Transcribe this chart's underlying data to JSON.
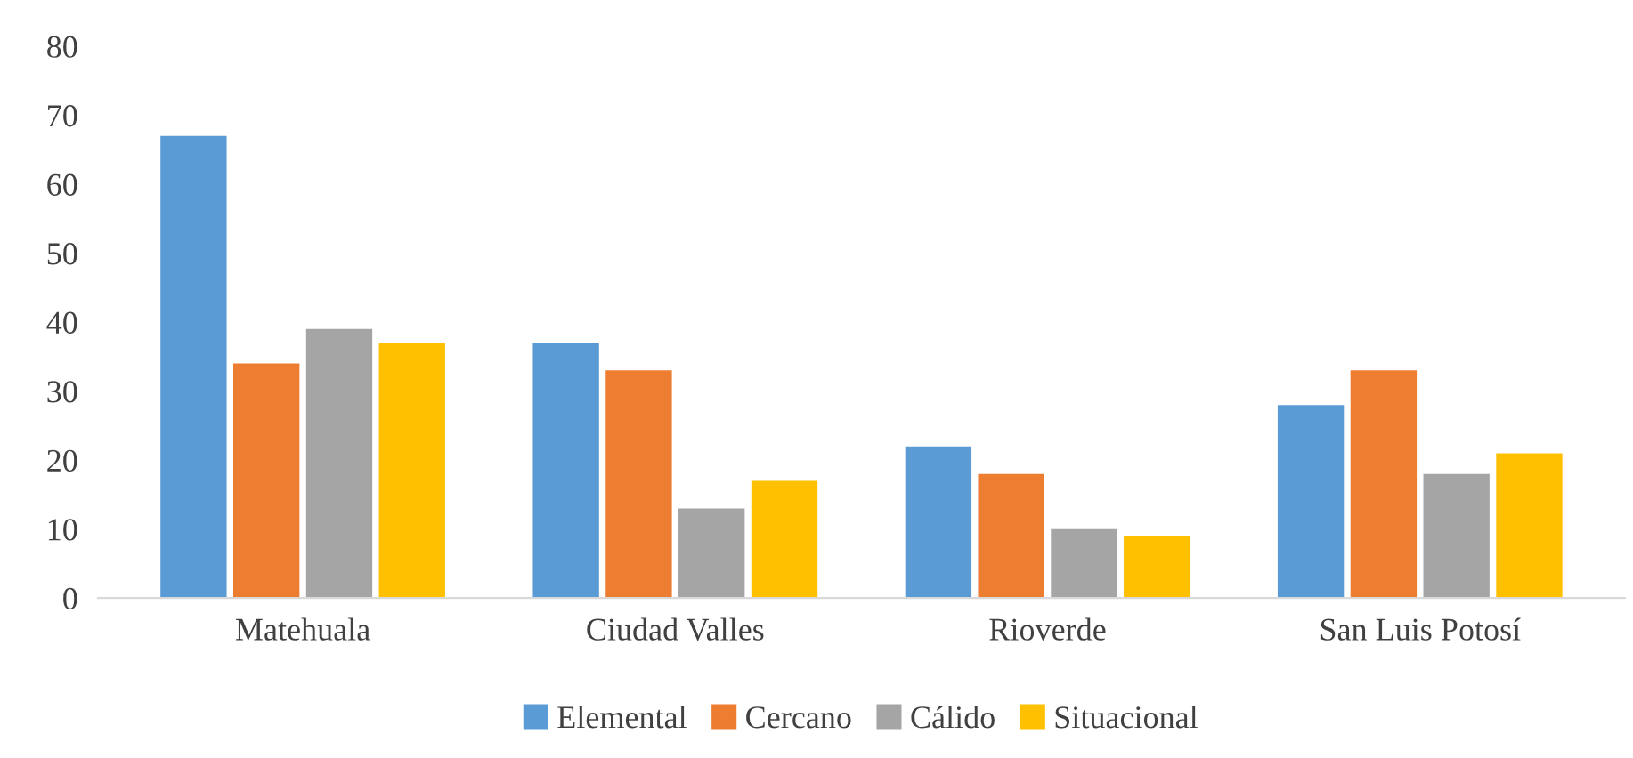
{
  "chart_data": {
    "type": "bar",
    "categories": [
      "Matehuala",
      "Ciudad Valles",
      "Rioverde",
      "San Luis Potosí"
    ],
    "series": [
      {
        "name": "Elemental",
        "color": "#5b9bd5",
        "values": [
          67,
          37,
          22,
          28
        ]
      },
      {
        "name": "Cercano",
        "color": "#ed7d31",
        "values": [
          34,
          33,
          18,
          33
        ]
      },
      {
        "name": "Cálido",
        "color": "#a5a5a5",
        "values": [
          39,
          13,
          10,
          18
        ]
      },
      {
        "name": "Situacional",
        "color": "#ffc000",
        "values": [
          37,
          17,
          9,
          21
        ]
      }
    ],
    "ylim": [
      0,
      80
    ],
    "yticks": [
      0,
      10,
      20,
      30,
      40,
      50,
      60,
      70,
      80
    ],
    "grid": false,
    "legend": "bottom"
  }
}
